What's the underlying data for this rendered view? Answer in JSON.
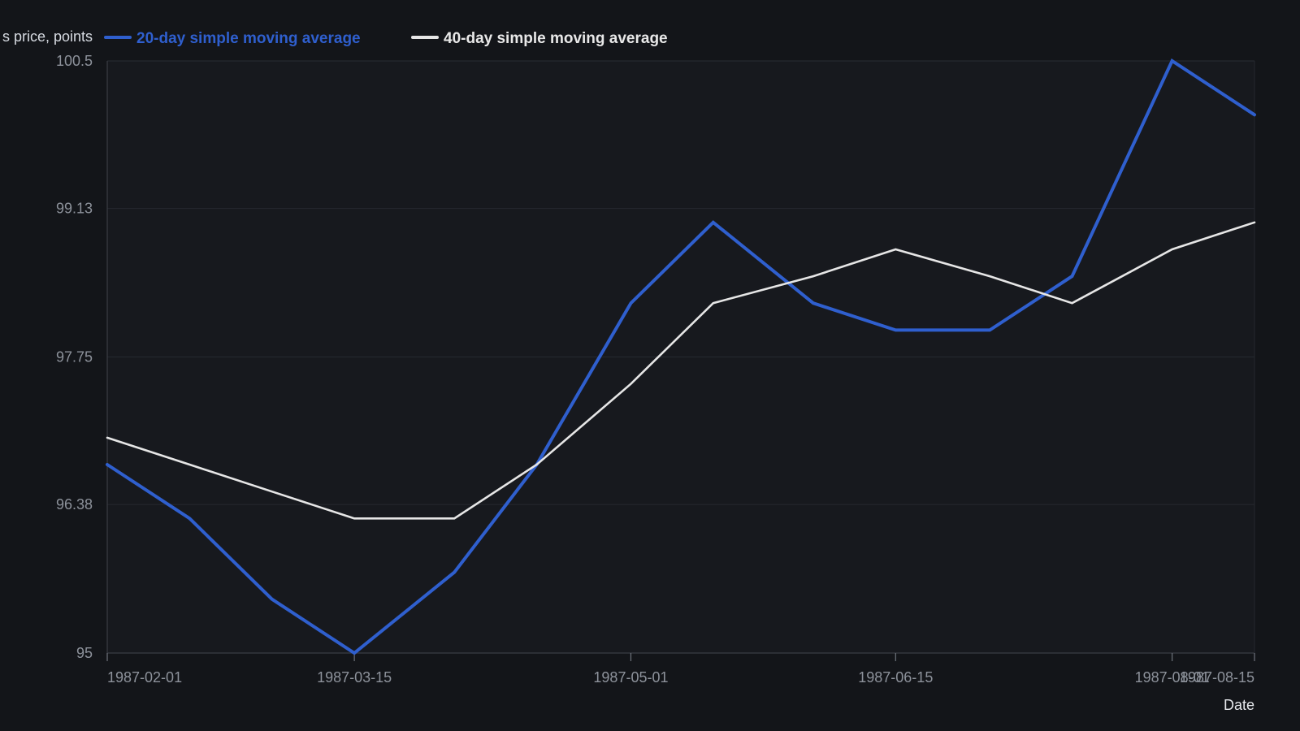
{
  "chart_data": {
    "type": "line",
    "ylabel": "s price, points",
    "xlabel": "Date",
    "ylim": [
      95,
      100.5
    ],
    "xlim": [
      "1987-02-01",
      "1987-08-15"
    ],
    "grid": true,
    "legend_position": "top-left",
    "y_ticks": [
      "100.5",
      "99.13",
      "97.75",
      "96.38",
      "95"
    ],
    "x_ticks": [
      "1987-02-01",
      "1987-03-15",
      "1987-05-01",
      "1987-06-15",
      "1987-08-01",
      "1987-08-15"
    ],
    "x": [
      "1987-02-01",
      "1987-02-15",
      "1987-03-01",
      "1987-03-15",
      "1987-04-01",
      "1987-04-15",
      "1987-05-01",
      "1987-05-15",
      "1987-06-01",
      "1987-06-15",
      "1987-07-01",
      "1987-07-15",
      "1987-08-01",
      "1987-08-15"
    ],
    "series": [
      {
        "name": "20-day simple moving average",
        "color": "#2f5fce",
        "values": [
          96.75,
          96.25,
          95.5,
          95.0,
          95.75,
          96.75,
          98.25,
          99.0,
          98.25,
          98.0,
          98.0,
          98.5,
          100.5,
          100.0
        ]
      },
      {
        "name": "40-day simple moving average",
        "color": "#e6e6e6",
        "values": [
          97.0,
          96.75,
          96.5,
          96.25,
          96.25,
          96.75,
          97.5,
          98.25,
          98.5,
          98.75,
          98.5,
          98.25,
          98.75,
          99.0
        ]
      }
    ]
  }
}
